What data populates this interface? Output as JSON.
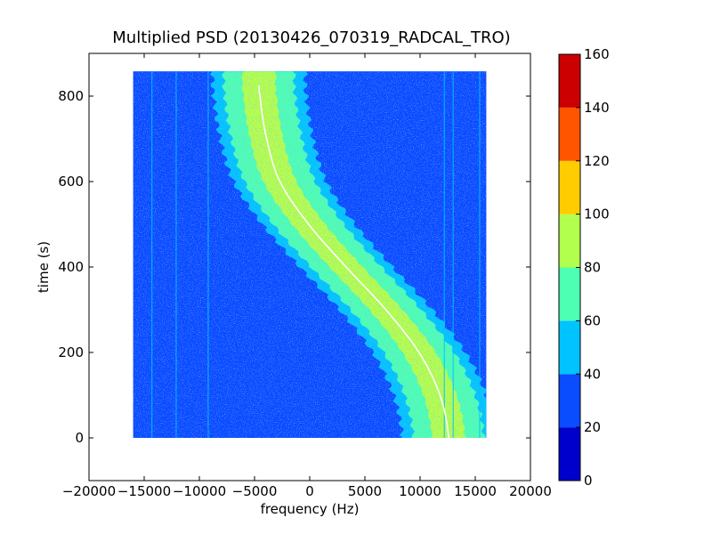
{
  "chart_data": {
    "type": "heatmap",
    "title": "Multiplied PSD (20130426_070319_RADCAL_TRO)",
    "xlabel": "frequency (Hz)",
    "ylabel": "time (s)",
    "xlim": [
      -20000,
      20000
    ],
    "ylim": [
      -100,
      900
    ],
    "x_ticks": [
      -20000,
      -15000,
      -10000,
      -5000,
      0,
      5000,
      10000,
      15000,
      20000
    ],
    "y_ticks": [
      0,
      200,
      400,
      600,
      800
    ],
    "data_extent": {
      "x": [
        -16000,
        16000
      ],
      "y": [
        0,
        858
      ]
    },
    "background_level": 30,
    "colorbar": {
      "ticks": [
        0,
        20,
        40,
        60,
        80,
        100,
        120,
        140,
        160
      ],
      "levels": [
        {
          "range": [
            0,
            20
          ],
          "color": "#0000cc"
        },
        {
          "range": [
            20,
            40
          ],
          "color": "#0a4dff"
        },
        {
          "range": [
            40,
            60
          ],
          "color": "#00c3ff"
        },
        {
          "range": [
            60,
            80
          ],
          "color": "#4dffb3"
        },
        {
          "range": [
            80,
            100
          ],
          "color": "#b3ff4d"
        },
        {
          "range": [
            100,
            120
          ],
          "color": "#ffcc00"
        },
        {
          "range": [
            120,
            140
          ],
          "color": "#ff5500"
        },
        {
          "range": [
            140,
            160
          ],
          "color": "#cc0000"
        }
      ]
    },
    "trace": {
      "name": "",
      "points": [
        {
          "t": 0,
          "f": 12600
        },
        {
          "t": 100,
          "f": 11800
        },
        {
          "t": 200,
          "f": 9900
        },
        {
          "t": 300,
          "f": 6900
        },
        {
          "t": 400,
          "f": 3300
        },
        {
          "t": 500,
          "f": -100
        },
        {
          "t": 600,
          "f": -2700
        },
        {
          "t": 700,
          "f": -3900
        },
        {
          "t": 800,
          "f": -4500
        },
        {
          "t": 825,
          "f": -4600
        }
      ],
      "band_levels": [
        {
          "half_width_hz": 4200,
          "level": 50
        },
        {
          "half_width_hz": 3200,
          "level": 70
        },
        {
          "half_width_hz": 1500,
          "level": 90
        }
      ]
    },
    "vertical_lines_hz": [
      -14300,
      -12100,
      -9200,
      12200,
      13000,
      15400
    ]
  }
}
